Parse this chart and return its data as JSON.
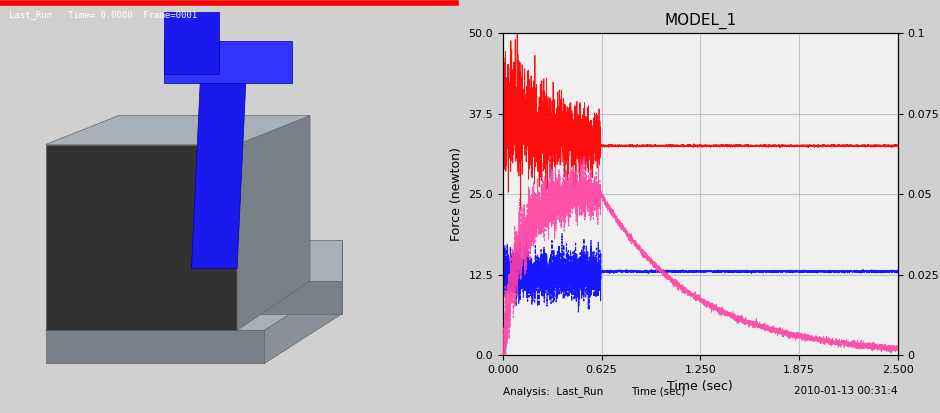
{
  "title": "MODEL_1",
  "xlabel": "Time (sec)",
  "ylabel_left": "Force (newton)",
  "xlim": [
    0.0,
    2.5
  ],
  "ylim_left": [
    0.0,
    50.0
  ],
  "ylim_right": [
    0.0,
    0.1
  ],
  "xticks": [
    0.0,
    0.625,
    1.25,
    1.875,
    2.5
  ],
  "yticks_left": [
    0.0,
    12.5,
    25.0,
    37.5,
    50.0
  ],
  "yticks_right": [
    0.0,
    0.025,
    0.05,
    0.075,
    0.1
  ],
  "footer_left": "Analysis:  Last_Run",
  "footer_center": "Time (sec)",
  "footer_right": "2010-01-13 00:31:4",
  "bg_color_3d": "#08102a",
  "header_text": "Last_Run   Time= 0.0000  Frame=0001",
  "red_steady": 32.5,
  "blue_steady": 13.0,
  "gray_light": "#a8b0b8",
  "gray_mid": "#7a8088",
  "gray_dark": "#323232",
  "blue_pin": "#1a1aee",
  "blue_pin_light": "#3333ff"
}
